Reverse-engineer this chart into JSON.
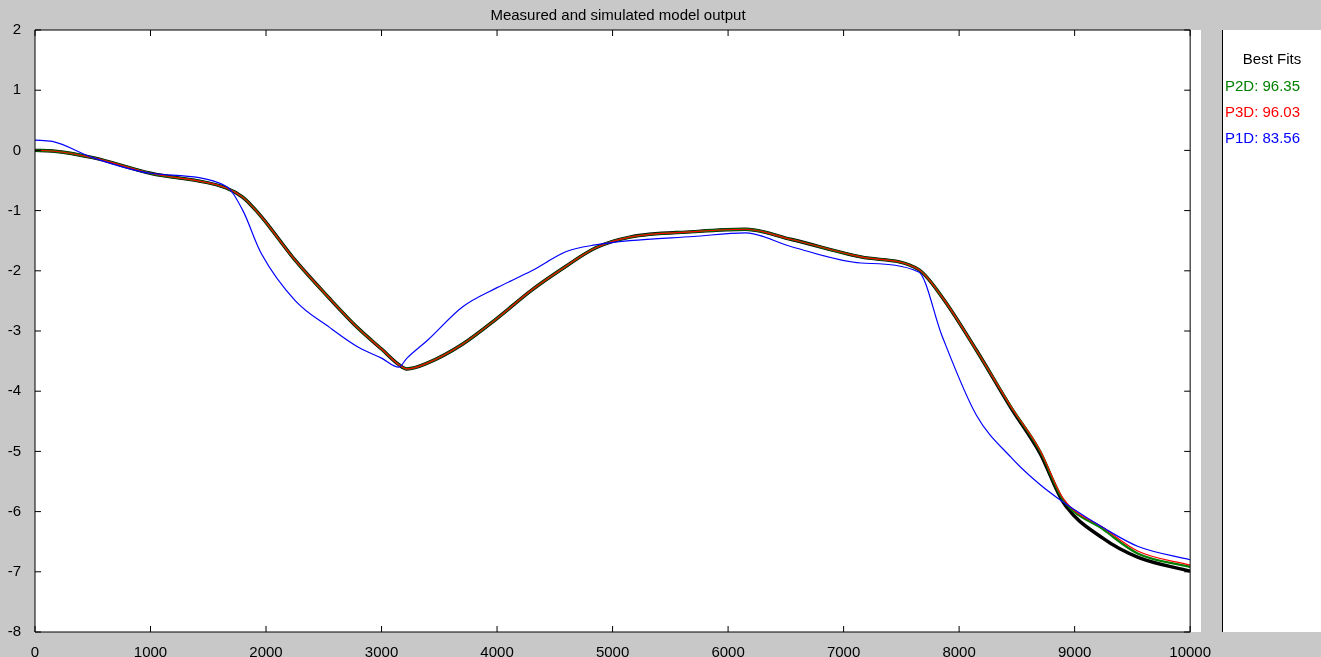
{
  "chart_data": {
    "type": "line",
    "title": "Measured and simulated model output",
    "legend": "right",
    "legend_title": "Best Fits",
    "x": [
      0,
      150,
      500,
      1000,
      1650,
      1800,
      1950,
      2250,
      2550,
      2800,
      3000,
      3150,
      3220,
      3400,
      3700,
      4000,
      4300,
      4600,
      4850,
      5150,
      5700,
      6150,
      6550,
      7150,
      7650,
      7850,
      8150,
      8450,
      8700,
      8900,
      9250,
      9550,
      10000
    ],
    "xlim": [
      0,
      10000
    ],
    "xticks": [
      0,
      1000,
      2000,
      3000,
      4000,
      5000,
      6000,
      7000,
      8000,
      9000,
      10000
    ],
    "ylim": [
      -8,
      2
    ],
    "yticks": [
      -8,
      -7,
      -6,
      -5,
      -4,
      -3,
      -2,
      -1,
      0,
      1,
      2
    ],
    "series": [
      {
        "color": "#000000",
        "values": [
          0,
          -0.01,
          -0.12,
          -0.38,
          -0.62,
          -0.78,
          -1.08,
          -1.82,
          -2.46,
          -2.96,
          -3.3,
          -3.56,
          -3.63,
          -3.53,
          -3.22,
          -2.79,
          -2.32,
          -1.92,
          -1.62,
          -1.44,
          -1.35,
          -1.31,
          -1.48,
          -1.77,
          -1.98,
          -2.43,
          -3.32,
          -4.28,
          -5.03,
          -5.84,
          -6.45,
          -6.76,
          -6.99
        ]
      },
      {
        "name": "P2D: 96.35",
        "color": "#008000",
        "values": [
          0,
          -0.01,
          -0.12,
          -0.38,
          -0.62,
          -0.78,
          -1.08,
          -1.82,
          -2.46,
          -2.96,
          -3.3,
          -3.56,
          -3.63,
          -3.53,
          -3.22,
          -2.79,
          -2.32,
          -1.92,
          -1.62,
          -1.44,
          -1.35,
          -1.31,
          -1.48,
          -1.77,
          -1.98,
          -2.43,
          -3.32,
          -4.26,
          -4.99,
          -5.8,
          -6.3,
          -6.7,
          -6.92
        ]
      },
      {
        "name": "P3D: 96.03",
        "color": "#ff0000",
        "values": [
          0,
          -0.01,
          -0.12,
          -0.38,
          -0.62,
          -0.78,
          -1.08,
          -1.82,
          -2.46,
          -2.96,
          -3.3,
          -3.56,
          -3.63,
          -3.53,
          -3.22,
          -2.79,
          -2.32,
          -1.92,
          -1.62,
          -1.44,
          -1.35,
          -1.31,
          -1.48,
          -1.77,
          -1.98,
          -2.43,
          -3.32,
          -4.26,
          -4.98,
          -5.78,
          -6.27,
          -6.66,
          -6.89
        ]
      },
      {
        "name": "P1D: 83.56",
        "color": "#0000ff",
        "values": [
          0.17,
          0.15,
          -0.12,
          -0.38,
          -0.59,
          -1.0,
          -1.68,
          -2.49,
          -2.94,
          -3.27,
          -3.45,
          -3.6,
          -3.45,
          -3.15,
          -2.6,
          -2.28,
          -2.0,
          -1.68,
          -1.57,
          -1.5,
          -1.43,
          -1.37,
          -1.6,
          -1.87,
          -2.02,
          -3.07,
          -4.4,
          -5.1,
          -5.55,
          -5.84,
          -6.27,
          -6.58,
          -6.8
        ]
      }
    ]
  }
}
